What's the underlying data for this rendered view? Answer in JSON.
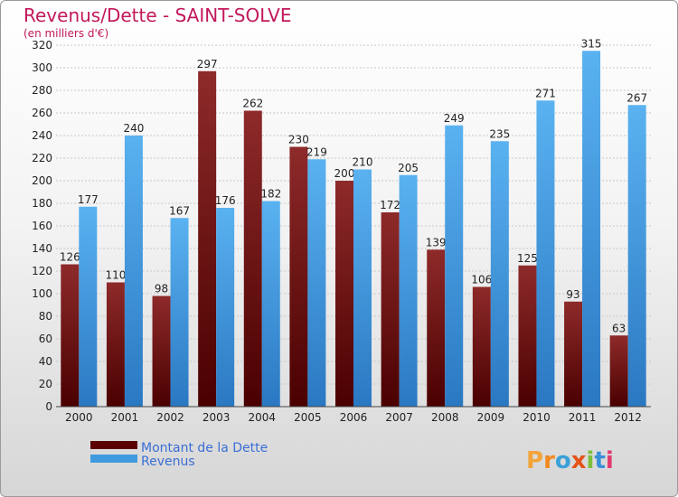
{
  "chart_data": {
    "type": "bar",
    "title": "Revenus/Dette - SAINT-SOLVE",
    "subtitle": "(en milliers d'€)",
    "categories": [
      "2000",
      "2001",
      "2002",
      "2003",
      "2004",
      "2005",
      "2006",
      "2007",
      "2008",
      "2009",
      "2010",
      "2011",
      "2012"
    ],
    "series": [
      {
        "name": "Montant de la Dette",
        "color": "#8b1a1a",
        "values": [
          126,
          110,
          98,
          297,
          262,
          230,
          200,
          172,
          139,
          106,
          125,
          93,
          63
        ]
      },
      {
        "name": "Revenus",
        "color": "#3f9ae0",
        "values": [
          177,
          240,
          167,
          176,
          182,
          219,
          210,
          205,
          249,
          235,
          271,
          315,
          267
        ]
      }
    ],
    "ylim": [
      0,
      320
    ],
    "yticks": [
      0,
      20,
      40,
      60,
      80,
      100,
      120,
      140,
      160,
      180,
      200,
      220,
      240,
      260,
      280,
      300,
      320
    ],
    "grid": true,
    "legend_position": "bottom-left"
  },
  "brand": {
    "letters": [
      "P",
      "r",
      "o",
      "x",
      "i",
      "t",
      "i"
    ],
    "colors": [
      "#f2a33a",
      "#f28a1f",
      "#3aa0d8",
      "#e5531a",
      "#7bbf3a",
      "#3a8fd8",
      "#e23a6e"
    ]
  }
}
